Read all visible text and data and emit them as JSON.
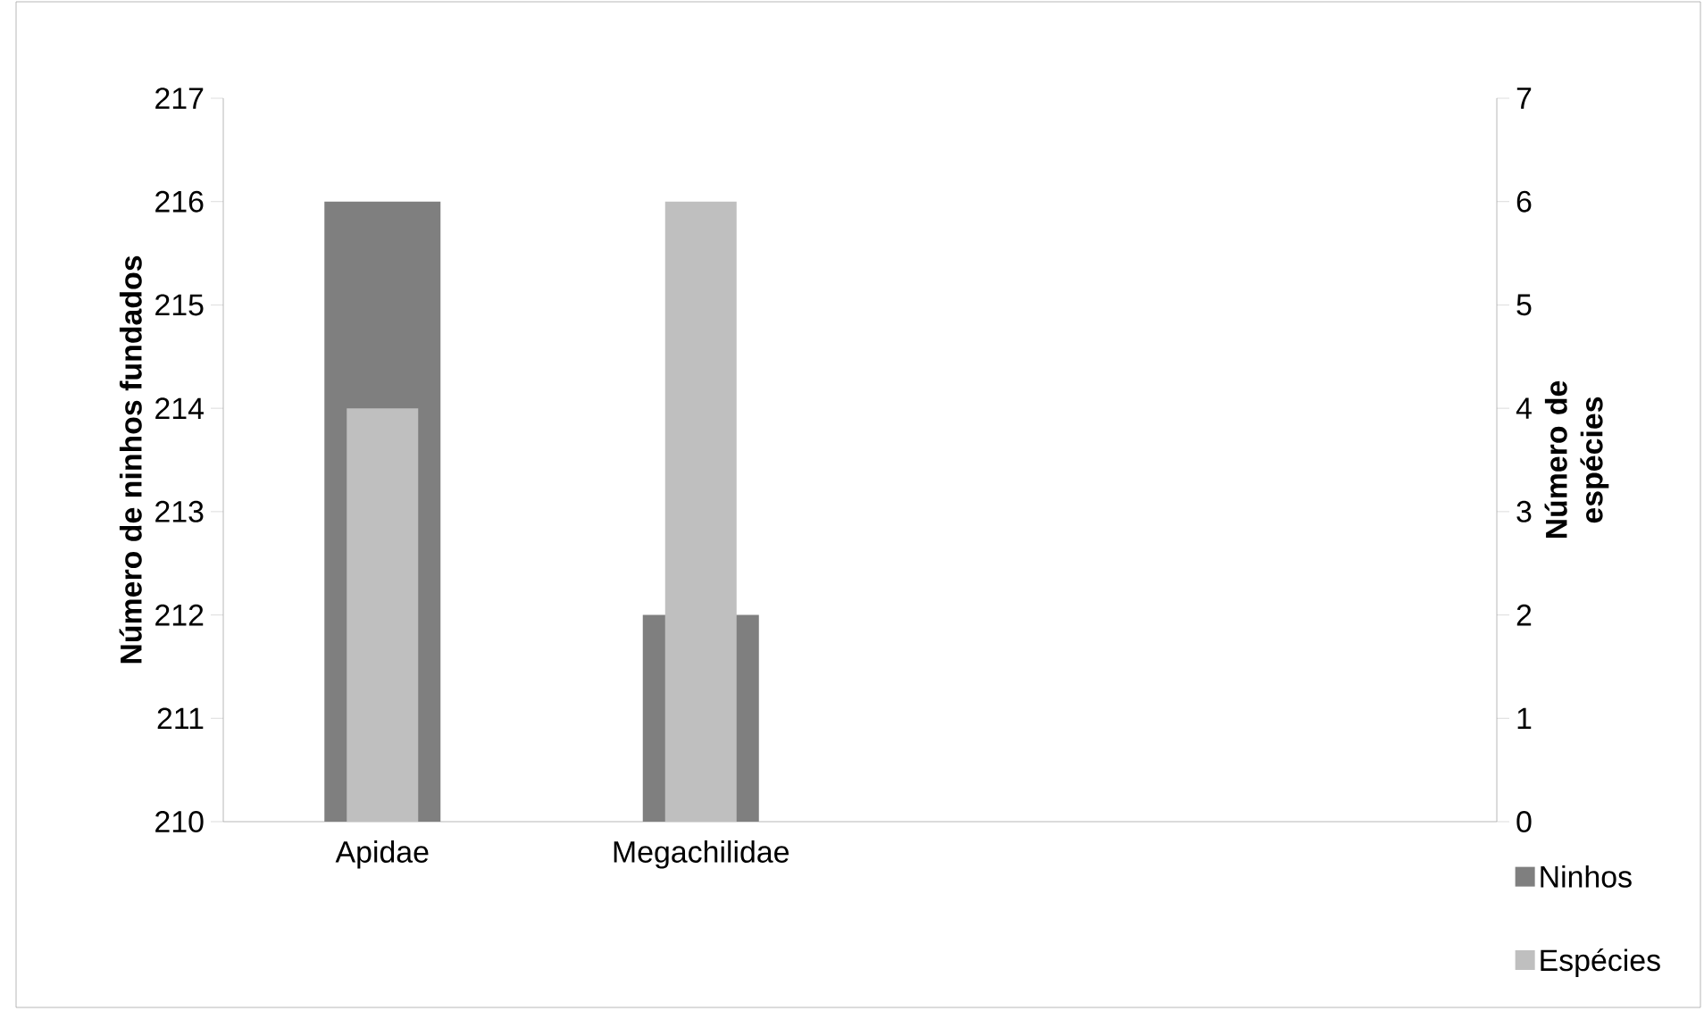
{
  "chart_data": {
    "type": "bar",
    "categories": [
      "Apidae",
      "Megachilidae",
      null,
      null
    ],
    "series": [
      {
        "name": "Ninhos",
        "color": "#7f7f7f",
        "values": [
          216,
          212,
          null,
          null
        ]
      },
      {
        "name": "Espécies",
        "color": "#bfbfbf",
        "values": [
          4,
          6,
          null,
          null
        ],
        "axis": "y2"
      }
    ],
    "ylabel": "Número de ninhos fundados",
    "y2label": "Número de espécies",
    "ylim": [
      210,
      217
    ],
    "yticks": [
      210,
      211,
      212,
      213,
      214,
      215,
      216,
      217
    ],
    "y2lim": [
      0,
      7
    ],
    "y2ticks": [
      0,
      1,
      2,
      3,
      4,
      5,
      6,
      7
    ],
    "legend": "bottom right"
  }
}
